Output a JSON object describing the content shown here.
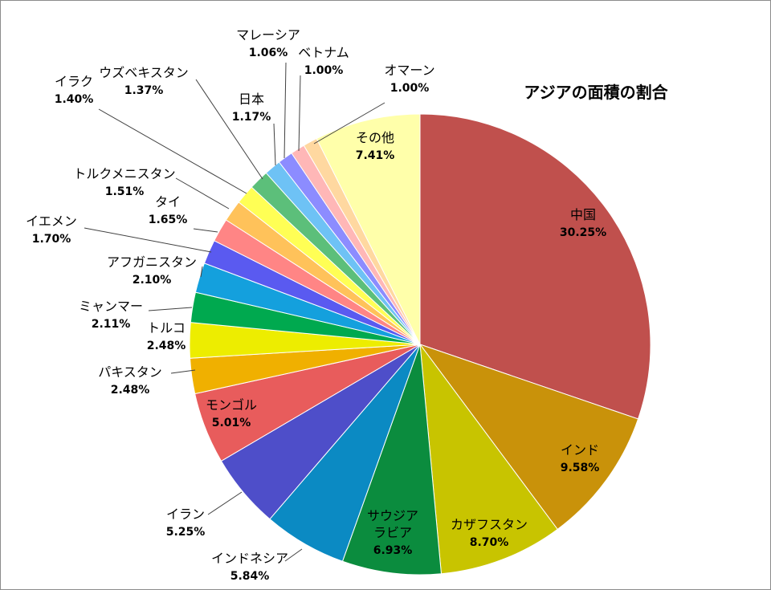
{
  "chart_data": {
    "type": "pie",
    "title": "アジアの面積の割合",
    "slices": [
      {
        "name": "中国",
        "value": 30.25,
        "label": "30.25%",
        "color": "#C0504D"
      },
      {
        "name": "インド",
        "value": 9.58,
        "label": "9.58%",
        "color": "#C9920A"
      },
      {
        "name": "カザフスタン",
        "value": 8.7,
        "label": "8.70%",
        "color": "#C8C400"
      },
      {
        "name": "サウジア\nラビア",
        "value": 6.93,
        "label": "6.93%",
        "color": "#0B8C3E"
      },
      {
        "name": "インドネシア",
        "value": 5.84,
        "label": "5.84%",
        "color": "#0B8AC3"
      },
      {
        "name": "イラン",
        "value": 5.25,
        "label": "5.25%",
        "color": "#4E4EC9"
      },
      {
        "name": "モンゴル",
        "value": 5.01,
        "label": "5.01%",
        "color": "#E85C5C"
      },
      {
        "name": "パキスタン",
        "value": 2.48,
        "label": "2.48%",
        "color": "#F0B000"
      },
      {
        "name": "トルコ",
        "value": 2.48,
        "label": "2.48%",
        "color": "#EDED00"
      },
      {
        "name": "ミャンマー",
        "value": 2.11,
        "label": "2.11%",
        "color": "#00A94F"
      },
      {
        "name": "アフガニスタン",
        "value": 2.1,
        "label": "2.10%",
        "color": "#14A0DD"
      },
      {
        "name": "イエメン",
        "value": 1.7,
        "label": "1.70%",
        "color": "#5A5AF0"
      },
      {
        "name": "タイ",
        "value": 1.65,
        "label": "1.65%",
        "color": "#FF8585"
      },
      {
        "name": "トルクメニスタン",
        "value": 1.51,
        "label": "1.51%",
        "color": "#FFC25A"
      },
      {
        "name": "ウズベキスタン",
        "value": 1.37,
        "label": "1.37%",
        "color": "#FFFF55"
      },
      {
        "name": "イラク",
        "value": 1.4,
        "label": "1.40%",
        "color": "#5CBF7A"
      },
      {
        "name": "日本",
        "value": 1.17,
        "label": "1.17%",
        "color": "#6EC2F5"
      },
      {
        "name": "マレーシア",
        "value": 1.06,
        "label": "1.06%",
        "color": "#8C8CFF"
      },
      {
        "name": "ベトナム",
        "value": 1.0,
        "label": "1.00%",
        "color": "#FFB7B7"
      },
      {
        "name": "オマーン",
        "value": 1.0,
        "label": "1.00%",
        "color": "#FFD8A0"
      },
      {
        "name": "その他",
        "value": 7.41,
        "label": "7.41%",
        "color": "#FFFFAA"
      }
    ]
  }
}
